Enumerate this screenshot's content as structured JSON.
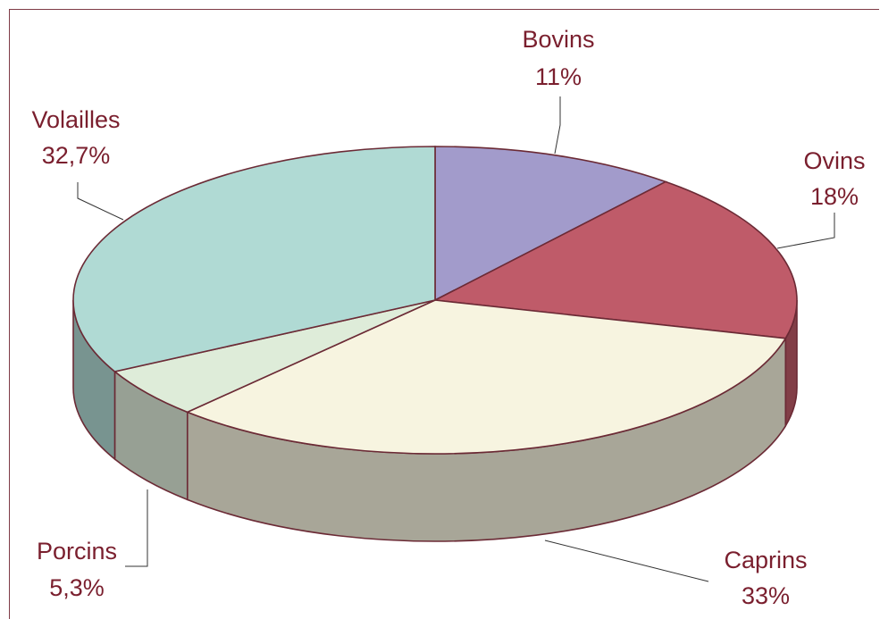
{
  "chart_data": {
    "type": "pie",
    "style": "3d",
    "slices": [
      {
        "name": "Bovins",
        "pct_label": "11%",
        "value": 11.0,
        "color": "#a29bcb"
      },
      {
        "name": "Ovins",
        "pct_label": "18%",
        "value": 18.0,
        "color": "#bf5b69"
      },
      {
        "name": "Caprins",
        "pct_label": "33%",
        "value": 33.0,
        "color": "#f7f4e0"
      },
      {
        "name": "Porcins",
        "pct_label": "5,3%",
        "value": 5.3,
        "color": "#deecd9"
      },
      {
        "name": "Volailles",
        "pct_label": "32,7%",
        "value": 32.7,
        "color": "#b0dad4"
      }
    ],
    "legend": "none",
    "outline_color": "#6b2a35"
  }
}
